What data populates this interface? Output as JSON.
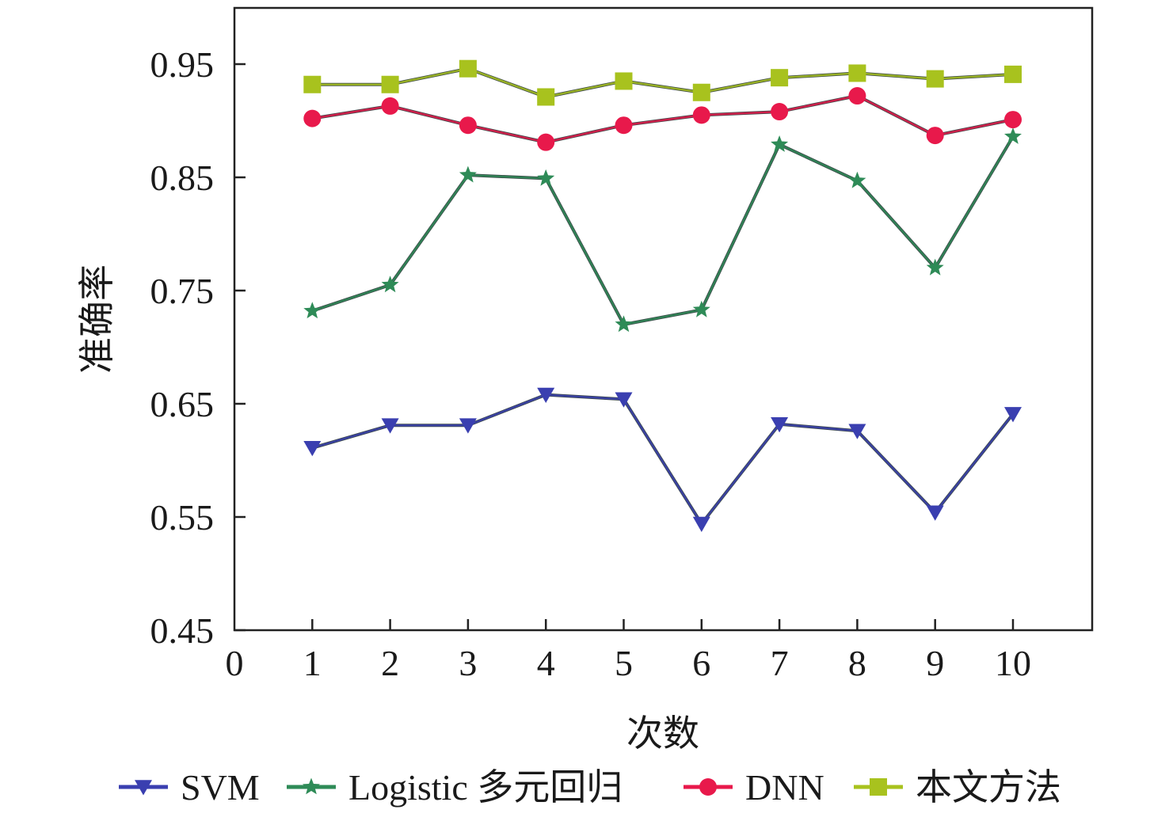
{
  "chart_data": {
    "type": "line",
    "xlabel": "次数",
    "ylabel": "准确率",
    "xlim": [
      0,
      11
    ],
    "ylim": [
      0.45,
      1.0
    ],
    "xticks": [
      "0",
      "1",
      "2",
      "3",
      "4",
      "5",
      "6",
      "7",
      "8",
      "9",
      "10"
    ],
    "yticks": [
      "0.45",
      "0.55",
      "0.65",
      "0.75",
      "0.85",
      "0.95"
    ],
    "x": [
      1,
      2,
      3,
      4,
      5,
      6,
      7,
      8,
      9,
      10
    ],
    "legend_position": "bottom",
    "series": [
      {
        "name": "SVM",
        "color": "#3a3fb0",
        "marker": "triangle-down",
        "values": [
          0.611,
          0.631,
          0.631,
          0.658,
          0.654,
          0.544,
          0.632,
          0.626,
          0.554,
          0.641
        ]
      },
      {
        "name": "Logistic 多元回归",
        "color": "#2e8b57",
        "marker": "star",
        "values": [
          0.732,
          0.755,
          0.852,
          0.849,
          0.72,
          0.733,
          0.879,
          0.847,
          0.77,
          0.886
        ]
      },
      {
        "name": "DNN",
        "color": "#e8194b",
        "marker": "circle",
        "values": [
          0.902,
          0.913,
          0.896,
          0.881,
          0.896,
          0.905,
          0.908,
          0.922,
          0.887,
          0.901
        ]
      },
      {
        "name": "本文方法",
        "color": "#a8c21e",
        "marker": "square",
        "values": [
          0.932,
          0.932,
          0.946,
          0.921,
          0.935,
          0.925,
          0.938,
          0.942,
          0.937,
          0.941
        ]
      }
    ]
  }
}
